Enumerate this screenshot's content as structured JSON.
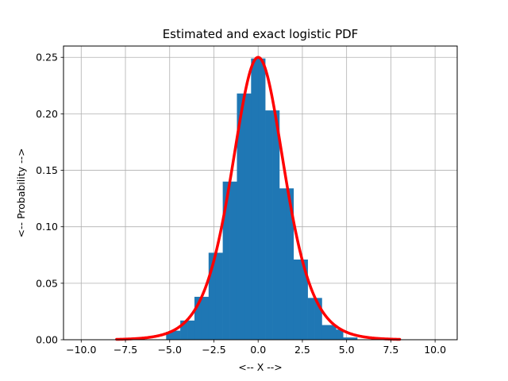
{
  "chart_data": {
    "type": "bar",
    "title": "Estimated and exact logistic PDF",
    "xlabel": "<-- X -->",
    "ylabel": "<-- Probability -->",
    "xlim": [
      -11.0,
      11.25
    ],
    "ylim": [
      0,
      0.26
    ],
    "xticks": [
      -10.0,
      -7.5,
      -5.0,
      -2.5,
      0.0,
      2.5,
      5.0,
      7.5,
      10.0
    ],
    "xtick_labels": [
      "−10.0",
      "−7.5",
      "−5.0",
      "−2.5",
      "0.0",
      "2.5",
      "5.0",
      "7.5",
      "10.0"
    ],
    "yticks": [
      0.0,
      0.05,
      0.1,
      0.15,
      0.2,
      0.25
    ],
    "ytick_labels": [
      "0.00",
      "0.05",
      "0.10",
      "0.15",
      "0.20",
      "0.25"
    ],
    "grid": true,
    "bar_color": "#1f77b4",
    "curve_color": "#ff0000",
    "histogram": {
      "bin_edges": [
        -10.0,
        -9.6,
        -9.2,
        -8.8,
        -8.4,
        -8.0,
        -7.6,
        -7.2,
        -6.8,
        -6.4,
        -6.0,
        -5.6,
        -5.2,
        -4.8,
        -4.4,
        -4.0,
        -3.6,
        -3.2,
        -2.8,
        -2.4,
        -2.0,
        -1.6,
        -1.2,
        -0.8,
        -0.4,
        0.0,
        0.4,
        0.8,
        1.2,
        1.6,
        2.0,
        2.4,
        2.8,
        3.2,
        3.6,
        4.0,
        4.4,
        4.8,
        5.2,
        5.6,
        6.0,
        6.4,
        6.8,
        7.2,
        7.6,
        8.0,
        8.4,
        8.8,
        9.2,
        9.6,
        10.0
      ],
      "values": [
        0.0,
        0.0,
        0.0,
        0.0,
        0.0,
        0.0,
        0.0,
        0.0,
        0.0,
        0.0,
        0.0,
        0.0,
        0.007,
        0.008,
        0.017,
        0.017,
        0.038,
        0.038,
        0.077,
        0.077,
        0.14,
        0.14,
        0.218,
        0.218,
        0.249,
        0.249,
        0.203,
        0.203,
        0.134,
        0.134,
        0.071,
        0.071,
        0.037,
        0.037,
        0.013,
        0.013,
        0.009,
        0.002,
        0.002,
        0.0,
        0.0,
        0.0,
        0.0,
        0.0,
        0.0,
        0.0,
        0.0,
        0.0,
        0.0,
        0.0
      ]
    },
    "curve": {
      "name": "exact logistic PDF",
      "distribution": "logistic",
      "location": 0,
      "scale": 1,
      "x_range": [
        -8.0,
        8.0
      ]
    }
  }
}
